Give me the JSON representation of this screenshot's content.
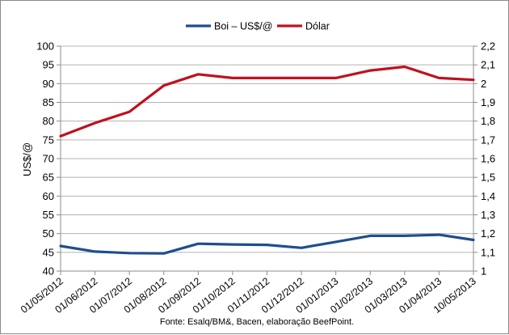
{
  "chart_data": {
    "type": "line",
    "x": [
      "01/05/2012",
      "01/06/2012",
      "01/07/2012",
      "01/08/2012",
      "01/09/2012",
      "01/10/2012",
      "01/11/2012",
      "01/12/2012",
      "01/01/2013",
      "01/02/2013",
      "01/03/2013",
      "01/04/2013",
      "10/05/2013"
    ],
    "series": [
      {
        "name": "Boi – US$/@",
        "axis": "left",
        "color": "#1f4e8c",
        "values": [
          46.7,
          45.2,
          44.8,
          44.7,
          47.3,
          47.1,
          47.0,
          46.2,
          47.8,
          49.4,
          49.4,
          49.7,
          48.3
        ]
      },
      {
        "name": "Dólar",
        "axis": "right",
        "color": "#c0111f",
        "values": [
          1.72,
          1.79,
          1.85,
          1.99,
          2.05,
          2.03,
          2.03,
          2.03,
          2.03,
          2.07,
          2.09,
          2.03,
          2.02
        ]
      }
    ],
    "ylabel": "US$/@",
    "ylim": [
      40,
      100
    ],
    "yticks": [
      "40",
      "45",
      "50",
      "55",
      "60",
      "65",
      "70",
      "75",
      "80",
      "85",
      "90",
      "95",
      "100"
    ],
    "y2lim": [
      1,
      2.2
    ],
    "y2ticks": [
      "1",
      "1,1",
      "1,2",
      "1,3",
      "1,4",
      "1,5",
      "1,6",
      "1,7",
      "1,8",
      "1,9",
      "2",
      "2,1",
      "2,2"
    ],
    "grid": "horizontal",
    "legend": "top-center",
    "source": "Fonte: Esalq/BM&, Bacen, elaboração BeefPoint."
  }
}
